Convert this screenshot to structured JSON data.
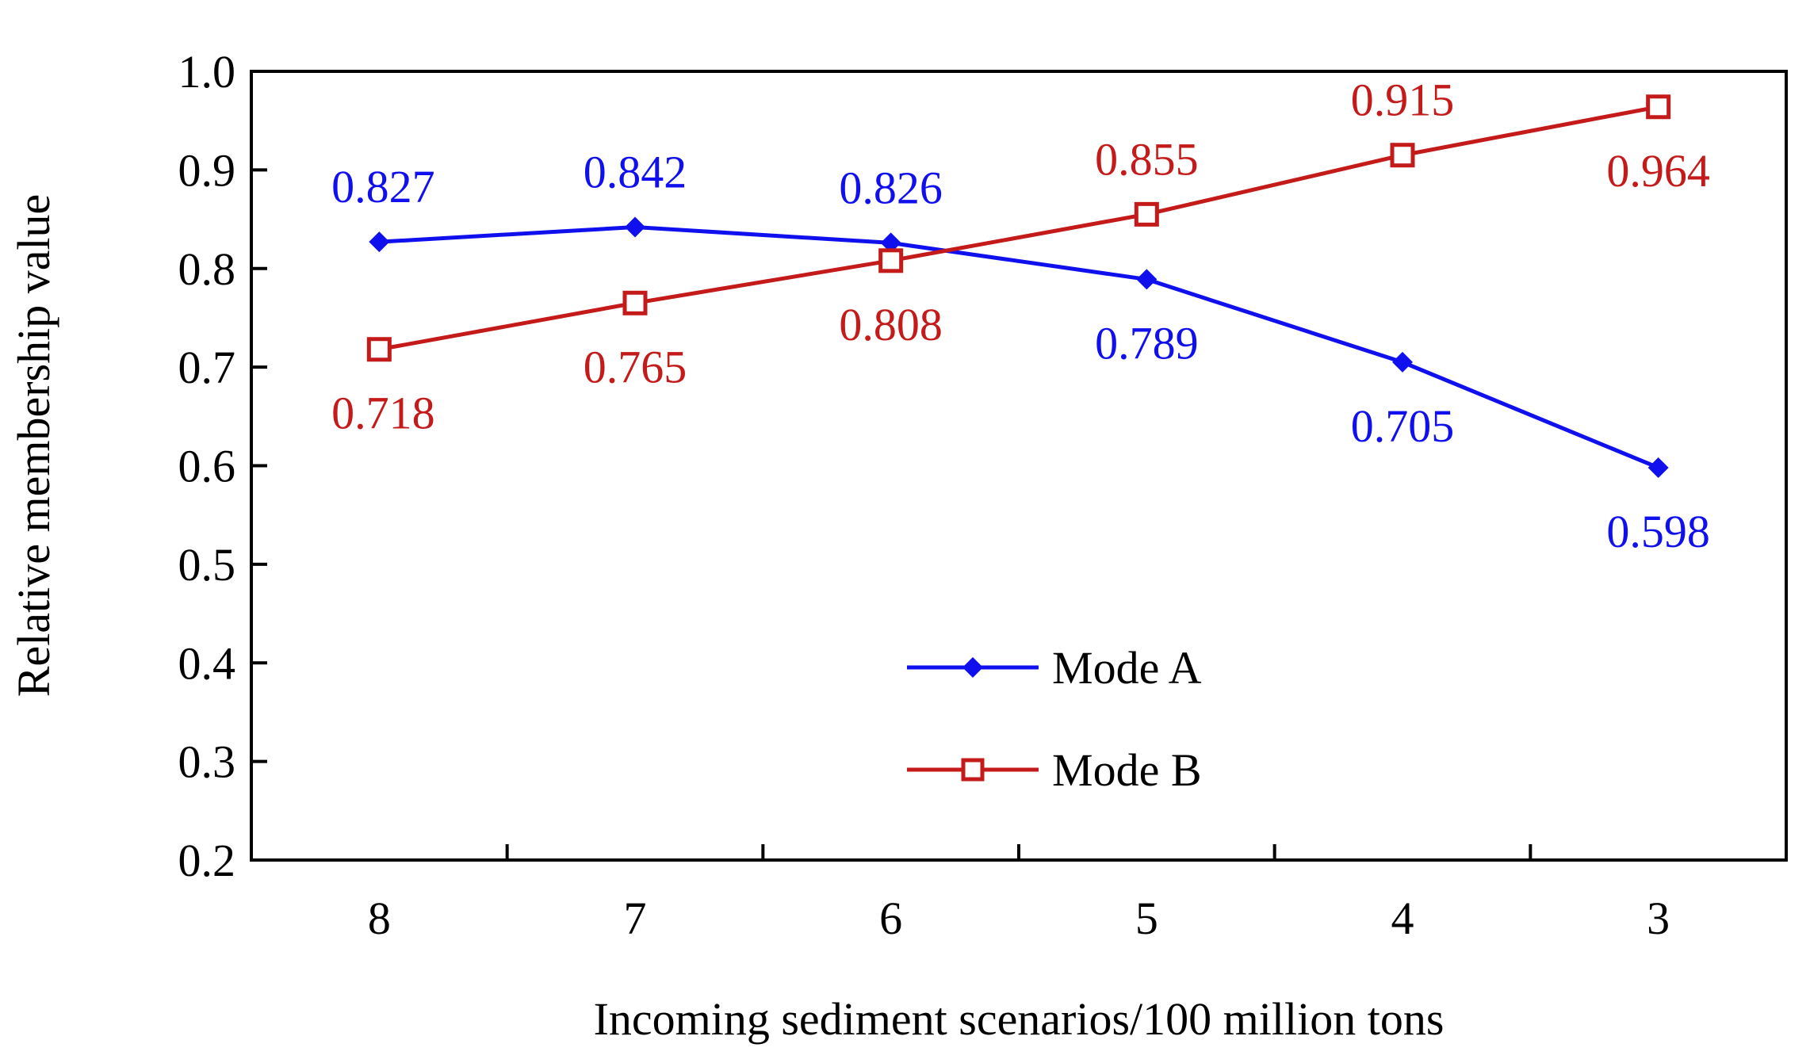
{
  "chart_data": {
    "type": "line",
    "title": "",
    "xlabel": "Incoming sediment scenarios/100 million tons",
    "ylabel": "Relative membership value",
    "categories": [
      "8",
      "7",
      "6",
      "5",
      "4",
      "3"
    ],
    "ylim": [
      0.2,
      1.0
    ],
    "yticks": [
      "0.2",
      "0.3",
      "0.4",
      "0.5",
      "0.6",
      "0.7",
      "0.8",
      "0.9",
      "1.0"
    ],
    "grid": false,
    "legend_position": "center-bottom",
    "series": [
      {
        "name": "Mode A",
        "color": "#1010ee",
        "marker": "filled-diamond",
        "values": [
          0.827,
          0.842,
          0.826,
          0.789,
          0.705,
          0.598
        ],
        "labels": [
          "0.827",
          "0.842",
          "0.826",
          "0.789",
          "0.705",
          "0.598"
        ]
      },
      {
        "name": "Mode B",
        "color": "#c41a1a",
        "marker": "open-square",
        "values": [
          0.718,
          0.765,
          0.808,
          0.855,
          0.915,
          0.964
        ],
        "labels": [
          "0.718",
          "0.765",
          "0.808",
          "0.855",
          "0.915",
          "0.964"
        ]
      }
    ]
  }
}
